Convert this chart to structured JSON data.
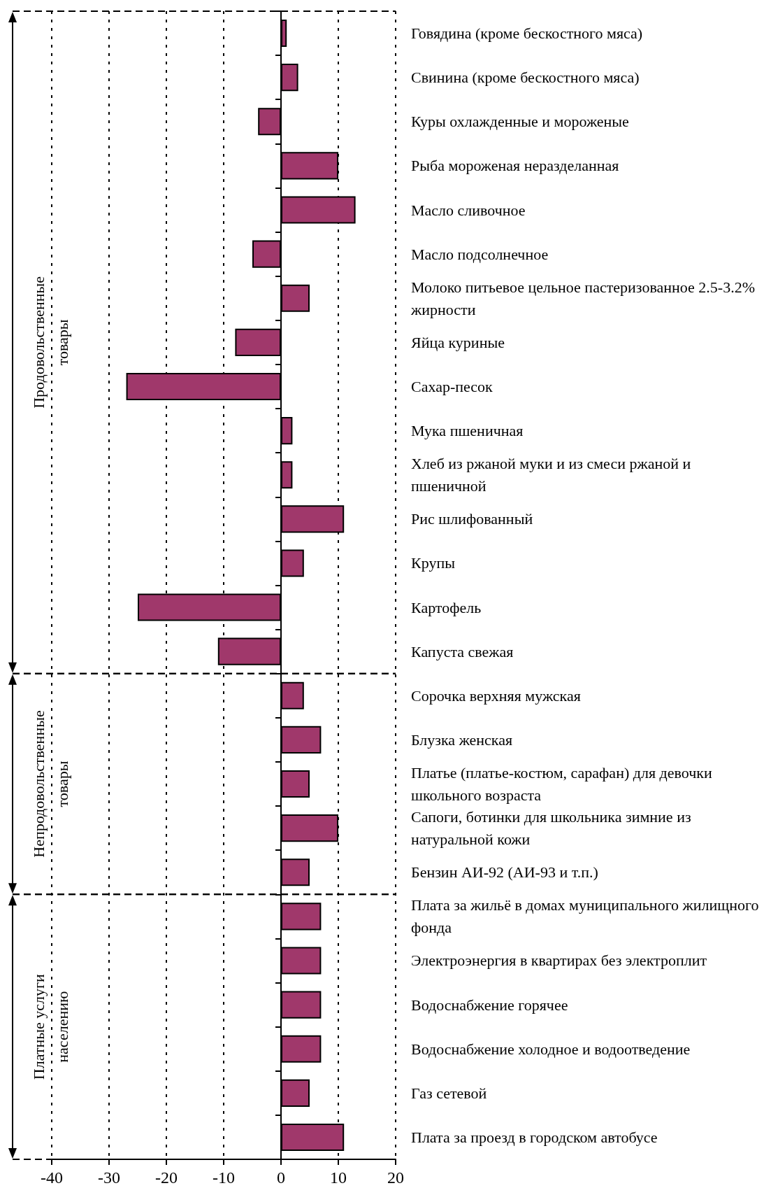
{
  "chart_data": {
    "type": "bar",
    "orientation": "horizontal",
    "categories": [
      "Говядина (кроме бескостного мяса)",
      "Свинина (кроме бескостного мяса)",
      "Куры охлажденные и мороженые",
      "Рыба мороженая неразделанная",
      "Масло сливочное",
      "Масло подсолнечное",
      "Молоко питьевое цельное пастеризованное 2.5-3.2% жирности",
      "Яйца куриные",
      "Сахар-песок",
      "Мука пшеничная",
      "Хлеб из ржаной муки и из смеси ржаной и пшеничной",
      "Рис шлифованный",
      "Крупы",
      "Картофель",
      "Капуста свежая",
      "Сорочка верхняя мужская",
      "Блузка женская",
      "Платье (платье-костюм, сарафан) для девочки школьного возраста",
      "Сапоги, ботинки для школьника зимние из натуральной кожи",
      "Бензин АИ-92 (АИ-93 и т.п.)",
      "Плата за жильё в домах муниципального жилищного фонда",
      "Электроэнергия в квартирах без электроплит",
      "Водоснабжение горячее",
      "Водоснабжение холодное и водоотведение",
      "Газ сетевой",
      "Плата за проезд в городском автобусе"
    ],
    "values": [
      1,
      3,
      -4,
      10,
      13,
      -5,
      5,
      -8,
      -27,
      2,
      2,
      11,
      4,
      -25,
      -11,
      4,
      7,
      5,
      10,
      5,
      7,
      7,
      7,
      7,
      5,
      11
    ],
    "color": "#a0386b",
    "xlim": [
      -40,
      20
    ],
    "xticks": [
      -40,
      -30,
      -20,
      -10,
      0,
      10,
      20
    ],
    "grid": "x",
    "annotations": [
      "Продовольственные товары",
      "Непродовольственные товары",
      "Платные услуги населению"
    ]
  }
}
